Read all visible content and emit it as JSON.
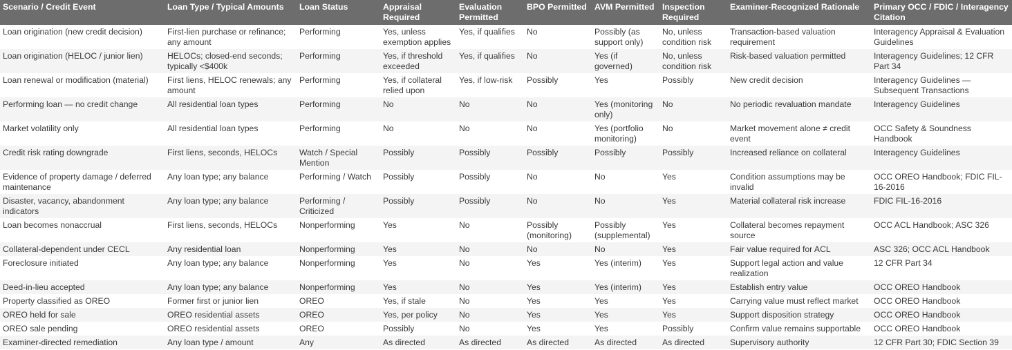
{
  "headers": [
    "Scenario / Credit Event",
    "Loan Type / Typical Amounts",
    "Loan Status",
    "Appraisal Required",
    "Evaluation Permitted",
    "BPO Permitted",
    "AVM Permitted",
    "Inspection Required",
    "Examiner-Recognized Rationale",
    "Primary OCC / FDIC / Interagency Citation"
  ],
  "rows": [
    [
      "Loan origination (new credit decision)",
      "First-lien purchase or refinance; any amount",
      "Performing",
      "Yes, unless exemption applies",
      "Yes, if qualifies",
      "No",
      "Possibly (as support only)",
      "No, unless condition risk",
      "Transaction-based valuation requirement",
      "Interagency Appraisal & Evaluation Guidelines"
    ],
    [
      "Loan origination (HELOC / junior lien)",
      "HELOCs; closed-end seconds; typically <$400k",
      "Performing",
      "Yes, if threshold exceeded",
      "Yes, if qualifies",
      "No",
      "Yes (if governed)",
      "No, unless condition risk",
      "Risk-based valuation permitted",
      "Interagency Guidelines; 12 CFR Part 34"
    ],
    [
      "Loan renewal or modification (material)",
      "First liens, HELOC renewals; any amount",
      "Performing",
      "Yes, if collateral relied upon",
      "Yes, if low-risk",
      "Possibly",
      "Yes",
      "Possibly",
      "New credit decision",
      "Interagency Guidelines — Subsequent Transactions"
    ],
    [
      "Performing loan — no credit change",
      "All residential loan types",
      "Performing",
      "No",
      "No",
      "No",
      "Yes (monitoring only)",
      "No",
      "No periodic revaluation mandate",
      "Interagency Guidelines"
    ],
    [
      "Market volatility only",
      "All residential loan types",
      "Performing",
      "No",
      "No",
      "No",
      "Yes (portfolio monitoring)",
      "No",
      "Market movement alone ≠ credit event",
      "OCC Safety & Soundness Handbook"
    ],
    [
      "Credit risk rating downgrade",
      "First liens, seconds, HELOCs",
      "Watch / Special Mention",
      "Possibly",
      "Possibly",
      "Possibly",
      "Possibly",
      "Possibly",
      "Increased reliance on collateral",
      "Interagency Guidelines"
    ],
    [
      "Evidence of property damage / deferred maintenance",
      "Any loan type; any balance",
      "Performing / Watch",
      "Possibly",
      "Possibly",
      "No",
      "No",
      "Yes",
      "Condition assumptions may be invalid",
      "OCC OREO Handbook; FDIC FIL-16-2016"
    ],
    [
      "Disaster, vacancy, abandonment indicators",
      "Any loan type; any balance",
      "Performing / Criticized",
      "Possibly",
      "Possibly",
      "No",
      "No",
      "Yes",
      "Material collateral risk increase",
      "FDIC FIL-16-2016"
    ],
    [
      "Loan becomes nonaccrual",
      "First liens, seconds, HELOCs",
      "Nonperforming",
      "Yes",
      "No",
      "Possibly (monitoring)",
      "Possibly (supplemental)",
      "Yes",
      "Collateral becomes repayment source",
      "OCC ACL Handbook; ASC 326"
    ],
    [
      "Collateral-dependent under CECL",
      "Any residential loan",
      "Nonperforming",
      "Yes",
      "No",
      "No",
      "No",
      "Yes",
      "Fair value required for ACL",
      "ASC 326; OCC ACL Handbook"
    ],
    [
      "Foreclosure initiated",
      "Any loan type; any balance",
      "Nonperforming",
      "Yes",
      "No",
      "Yes",
      "Yes (interim)",
      "Yes",
      "Support legal action and value realization",
      "12 CFR Part 34"
    ],
    [
      "Deed-in-lieu accepted",
      "Any loan type; any balance",
      "Nonperforming",
      "Yes",
      "No",
      "Yes",
      "Yes (interim)",
      "Yes",
      "Establish entry value",
      "OCC OREO Handbook"
    ],
    [
      "Property classified as OREO",
      "Former first or junior lien",
      "OREO",
      "Yes, if stale",
      "No",
      "Yes",
      "Yes",
      "Yes",
      "Carrying value must reflect market",
      "OCC OREO Handbook"
    ],
    [
      "OREO held for sale",
      "OREO residential assets",
      "OREO",
      "Yes, per policy",
      "No",
      "Yes",
      "Yes",
      "Yes",
      "Support disposition strategy",
      "OCC OREO Handbook"
    ],
    [
      "OREO sale pending",
      "OREO residential assets",
      "OREO",
      "Possibly",
      "No",
      "Yes",
      "Yes",
      "Possibly",
      "Confirm value remains supportable",
      "OCC OREO Handbook"
    ],
    [
      "Examiner-directed remediation",
      "Any loan type / amount",
      "Any",
      "As directed",
      "As directed",
      "As directed",
      "As directed",
      "As directed",
      "Supervisory authority",
      "12 CFR Part 30; FDIC Section 39"
    ]
  ]
}
